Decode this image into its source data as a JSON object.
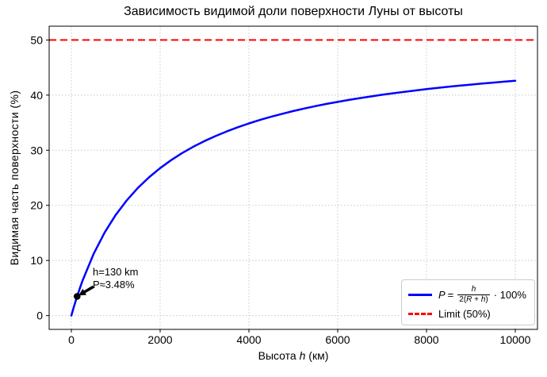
{
  "chart_data": {
    "type": "line",
    "title": "Зависимость видимой доли поверхности Луны от высоты",
    "xlabel": "Высота h (км)",
    "xlabel_prefix": "Высота ",
    "xlabel_var": "h",
    "xlabel_suffix": " (км)",
    "ylabel": "Видимая часть поверхности (%)",
    "xlim": [
      -500,
      10500
    ],
    "ylim": [
      -2.5,
      52.5
    ],
    "x_ticks": [
      0,
      2000,
      4000,
      6000,
      8000,
      10000
    ],
    "y_ticks": [
      0,
      10,
      20,
      30,
      40,
      50
    ],
    "grid": true,
    "grid_style": "dotted",
    "legend_position": "lower right",
    "series": [
      {
        "name": "P = h/(2(R+h)) · 100%",
        "kind": "curve",
        "color": "#0000ff",
        "linestyle": "solid",
        "linewidth": 2.5,
        "x": [
          0,
          50,
          100,
          130,
          150,
          200,
          250,
          500,
          750,
          1000,
          1250,
          1500,
          1750,
          2000,
          2250,
          2500,
          2750,
          3000,
          3250,
          3500,
          3750,
          4000,
          4250,
          4500,
          4750,
          5000,
          5250,
          5500,
          5750,
          6000,
          6250,
          6500,
          6750,
          7000,
          7250,
          7500,
          7750,
          8000,
          8250,
          8500,
          8750,
          9000,
          9250,
          9500,
          9750,
          10000
        ],
        "y": [
          0,
          1.4,
          2.72,
          3.48,
          3.97,
          5.16,
          6.29,
          11.17,
          15.08,
          18.27,
          20.92,
          23.17,
          25.09,
          26.76,
          28.21,
          29.5,
          30.64,
          31.66,
          32.58,
          33.41,
          34.17,
          34.86,
          35.49,
          36.07,
          36.61,
          37.11,
          37.57,
          38.0,
          38.4,
          38.77,
          39.12,
          39.45,
          39.76,
          40.06,
          40.33,
          40.6,
          40.84,
          41.08,
          41.3,
          41.51,
          41.72,
          41.91,
          42.09,
          42.27,
          42.44,
          42.6
        ]
      },
      {
        "name": "Limit (50%)",
        "kind": "hline",
        "color": "#ff0000",
        "linestyle": "dashed",
        "linewidth": 2,
        "y_const": 50
      }
    ],
    "annotation": {
      "line1": "h=130 km",
      "line2": "P≈3.48%",
      "point_x": 130,
      "point_y": 3.48,
      "marker_color": "#000000"
    },
    "legend": {
      "var_P": "P",
      "eq": " = ",
      "formula_numerator": "h",
      "formula_den_pre": "2(",
      "formula_den_R": "R",
      "formula_den_mid": " + ",
      "formula_den_h": "h",
      "formula_den_post": ")",
      "formula_suffix": "· 100%",
      "limit_label": "Limit (50%)"
    },
    "colors": {
      "curve": "#0000ff",
      "limit": "#ff0000",
      "grid": "#c8c8c8",
      "spine": "#000000",
      "marker": "#000000"
    }
  }
}
